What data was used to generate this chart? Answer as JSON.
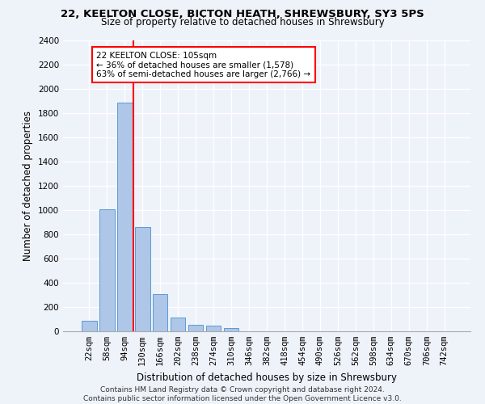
{
  "title_line1": "22, KEELTON CLOSE, BICTON HEATH, SHREWSBURY, SY3 5PS",
  "title_line2": "Size of property relative to detached houses in Shrewsbury",
  "xlabel": "Distribution of detached houses by size in Shrewsbury",
  "ylabel": "Number of detached properties",
  "footnote": "Contains HM Land Registry data © Crown copyright and database right 2024.\nContains public sector information licensed under the Open Government Licence v3.0.",
  "bar_labels": [
    "22sqm",
    "58sqm",
    "94sqm",
    "130sqm",
    "166sqm",
    "202sqm",
    "238sqm",
    "274sqm",
    "310sqm",
    "346sqm",
    "382sqm",
    "418sqm",
    "454sqm",
    "490sqm",
    "526sqm",
    "562sqm",
    "598sqm",
    "634sqm",
    "670sqm",
    "706sqm",
    "742sqm"
  ],
  "bar_values": [
    90,
    1010,
    1890,
    860,
    310,
    115,
    55,
    48,
    25,
    0,
    0,
    0,
    0,
    0,
    0,
    0,
    0,
    0,
    0,
    0,
    0
  ],
  "bar_color": "#aec6e8",
  "bar_edge_color": "#5b9bd5",
  "ylim": [
    0,
    2400
  ],
  "yticks": [
    0,
    200,
    400,
    600,
    800,
    1000,
    1200,
    1400,
    1600,
    1800,
    2000,
    2200,
    2400
  ],
  "annotation_title": "22 KEELTON CLOSE: 105sqm",
  "annotation_line1": "← 36% of detached houses are smaller (1,578)",
  "annotation_line2": "63% of semi-detached houses are larger (2,766) →",
  "vline_x_index": 2.5,
  "background_color": "#eef2f9",
  "grid_color": "#ffffff",
  "title_fontsize": 9.5,
  "subtitle_fontsize": 8.5,
  "axis_label_fontsize": 8.5,
  "tick_fontsize": 7.5,
  "footnote_fontsize": 6.5
}
